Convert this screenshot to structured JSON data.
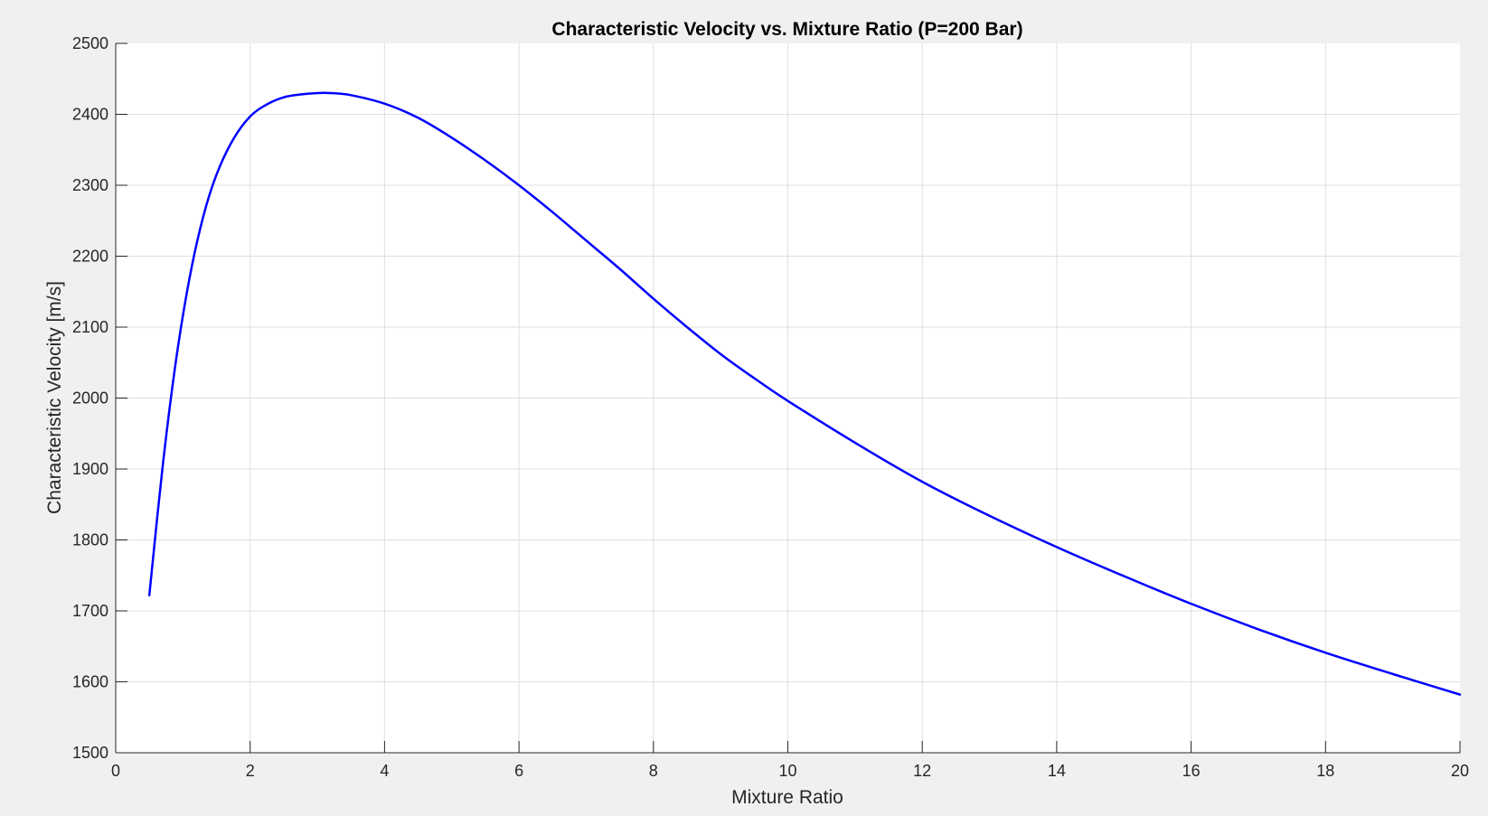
{
  "chart_data": {
    "type": "line",
    "title": "Characteristic Velocity vs. Mixture Ratio (P=200 Bar)",
    "xlabel": "Mixture Ratio",
    "ylabel": "Characteristic Velocity [m/s]",
    "xlim": [
      0,
      20
    ],
    "ylim": [
      1500,
      2500
    ],
    "xticks": [
      "0",
      "2",
      "4",
      "6",
      "8",
      "10",
      "12",
      "14",
      "16",
      "18",
      "20"
    ],
    "yticks": [
      "1500",
      "1600",
      "1700",
      "1800",
      "1900",
      "2000",
      "2100",
      "2200",
      "2300",
      "2400",
      "2500"
    ],
    "grid": true,
    "legend": "none",
    "series": [
      {
        "color": "#0000ff",
        "x": [
          0.5,
          0.7,
          0.9,
          1.1,
          1.3,
          1.5,
          1.75,
          2.0,
          2.25,
          2.5,
          2.75,
          3.0,
          3.2,
          3.5,
          4.0,
          4.5,
          5.0,
          5.5,
          6.0,
          6.5,
          7.0,
          7.5,
          8.0,
          8.5,
          9.0,
          9.5,
          10.0,
          11.0,
          12.0,
          13.0,
          14.0,
          15.0,
          16.0,
          17.0,
          18.0,
          19.0,
          20.0
        ],
        "y": [
          1722,
          1905,
          2055,
          2170,
          2255,
          2315,
          2365,
          2397,
          2414,
          2424,
          2428,
          2430,
          2430,
          2427,
          2415,
          2395,
          2367,
          2335,
          2300,
          2262,
          2222,
          2182,
          2140,
          2100,
          2062,
          2028,
          1996,
          1937,
          1882,
          1834,
          1790,
          1749,
          1710,
          1674,
          1641,
          1611,
          1582
        ]
      }
    ]
  }
}
